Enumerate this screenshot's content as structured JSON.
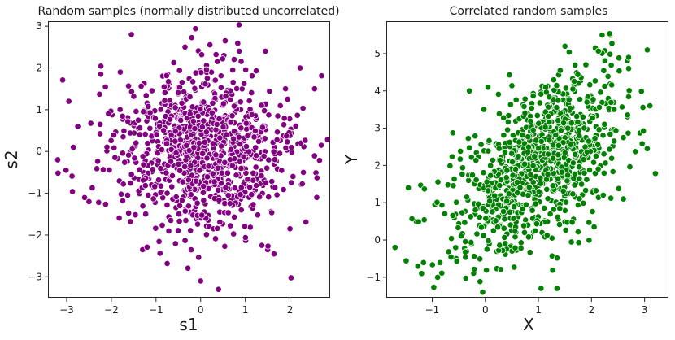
{
  "chart_data": [
    {
      "type": "scatter",
      "title": "Random samples (normally distributed uncorrelated)",
      "xlabel": "s1",
      "ylabel": "s2",
      "xlim": [
        -3.4,
        2.9
      ],
      "ylim": [
        -3.5,
        3.1
      ],
      "xticks": [
        -3,
        -2,
        -1,
        0,
        1,
        2
      ],
      "yticks": [
        -3,
        -2,
        -1,
        0,
        1,
        2,
        3
      ],
      "color": "#800080",
      "n_points": 1000,
      "distribution": {
        "mean_x": 0,
        "std_x": 1,
        "mean_y": 0,
        "std_y": 1,
        "correlation": 0
      },
      "points": [
        [
          -1.55,
          2.8
        ],
        [
          -0.35,
          2.5
        ],
        [
          0.55,
          2.65
        ],
        [
          1.45,
          2.4
        ],
        [
          -3.2,
          -0.2
        ],
        [
          -2.95,
          1.2
        ],
        [
          -2.5,
          -1.2
        ],
        [
          2.55,
          1.5
        ],
        [
          2.7,
          0.15
        ],
        [
          2.6,
          -1.1
        ],
        [
          0.0,
          -3.1
        ],
        [
          0.4,
          -3.3
        ],
        [
          -1.3,
          -2.35
        ],
        [
          1.5,
          -2.35
        ],
        [
          2.0,
          -1.85
        ],
        [
          -2.25,
          0.65
        ],
        [
          -2.85,
          0.1
        ],
        [
          2.3,
          -0.5
        ],
        [
          -1.8,
          1.9
        ],
        [
          1.9,
          1.5
        ]
      ]
    },
    {
      "type": "scatter",
      "title": "Correlated random samples",
      "xlabel": "X",
      "ylabel": "Y",
      "xlim": [
        -1.85,
        3.45
      ],
      "ylim": [
        -1.55,
        5.85
      ],
      "xticks": [
        -1,
        0,
        1,
        2,
        3
      ],
      "yticks": [
        -1,
        0,
        1,
        2,
        3,
        4,
        5
      ],
      "color": "#008000",
      "n_points": 1000,
      "distribution": {
        "mean_x": 1,
        "std_x": 0.8,
        "mean_y": 2,
        "std_y": 1.2,
        "correlation": 0.55
      },
      "points": [
        [
          -1.7,
          -0.2
        ],
        [
          -1.45,
          1.4
        ],
        [
          -1.3,
          0.5
        ],
        [
          -1.2,
          -0.9
        ],
        [
          3.05,
          5.1
        ],
        [
          2.35,
          5.5
        ],
        [
          2.2,
          5.5
        ],
        [
          1.5,
          5.2
        ],
        [
          3.05,
          2.45
        ],
        [
          3.1,
          3.6
        ],
        [
          -0.3,
          4.0
        ],
        [
          1.05,
          -1.3
        ],
        [
          1.35,
          -1.3
        ],
        [
          -0.05,
          -1.4
        ],
        [
          -0.95,
          0.95
        ],
        [
          2.7,
          4.6
        ],
        [
          2.6,
          1.1
        ],
        [
          0.05,
          4.1
        ],
        [
          2.05,
          0.35
        ],
        [
          -0.55,
          -0.5
        ]
      ]
    }
  ]
}
